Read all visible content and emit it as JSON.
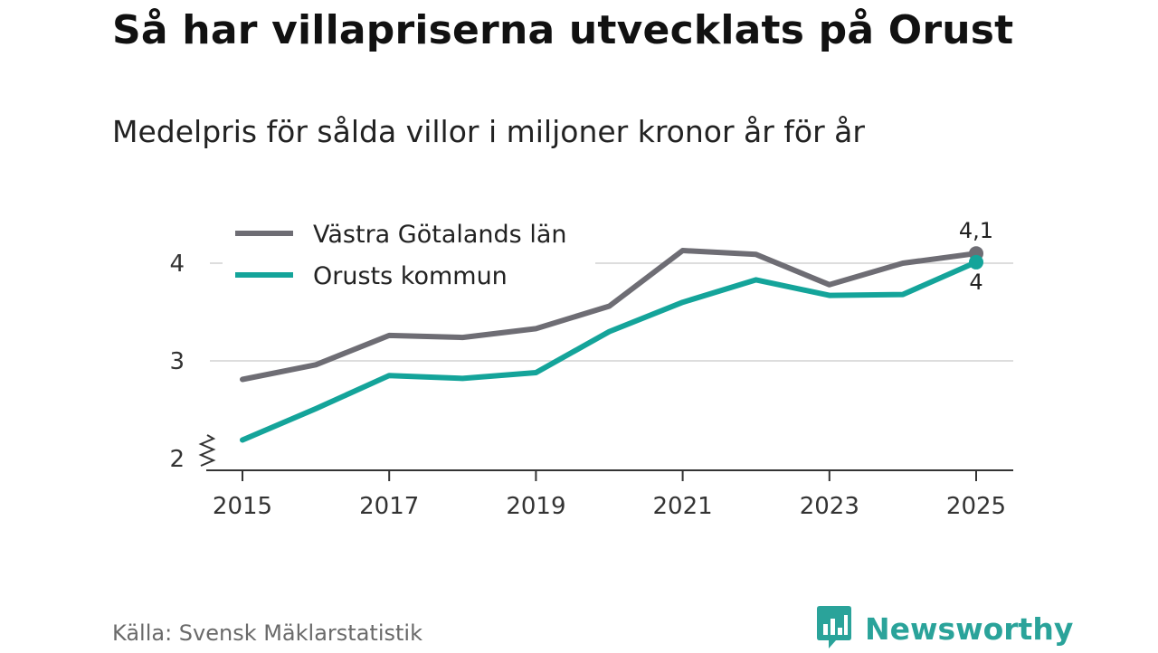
{
  "header": {
    "title": "Så har villapriserna utvecklats på Orust",
    "subtitle": "Medelpris för sålda villor i miljoner kronor år för år"
  },
  "footer": {
    "source": "Källa: Svensk Mäklarstatistik",
    "brand": "Newsworthy"
  },
  "colors": {
    "vg": "#6e6d74",
    "orust": "#14a49a",
    "grid": "#dddddd",
    "axis": "#333333"
  },
  "chart_data": {
    "type": "line",
    "title": "Så har villapriserna utvecklats på Orust",
    "subtitle": "Medelpris för sålda villor i miljoner kronor år för år",
    "xlabel": "",
    "ylabel": "",
    "x": [
      2015,
      2016,
      2017,
      2018,
      2019,
      2020,
      2021,
      2022,
      2023,
      2024,
      2025
    ],
    "x_ticks": [
      "2015",
      "2017",
      "2019",
      "2021",
      "2023",
      "2025"
    ],
    "y_ticks": [
      "2",
      "3",
      "4"
    ],
    "ylim": [
      2,
      4.3
    ],
    "y_axis_break": true,
    "grid": true,
    "legend_position": "top-left",
    "series": [
      {
        "name": "Västra Götalands län",
        "color": "#6e6d74",
        "values": [
          2.81,
          2.96,
          3.26,
          3.24,
          3.33,
          3.56,
          4.13,
          4.09,
          3.78,
          4.0,
          4.1
        ],
        "end_label": "4,1"
      },
      {
        "name": "Orusts kommun",
        "color": "#14a49a",
        "values": [
          2.19,
          2.51,
          2.85,
          2.82,
          2.88,
          3.3,
          3.6,
          3.83,
          3.67,
          3.68,
          4.01
        ],
        "end_label": "4"
      }
    ]
  }
}
